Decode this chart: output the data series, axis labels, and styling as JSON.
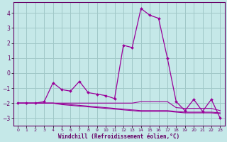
{
  "xlabel": "Windchill (Refroidissement éolien,°C)",
  "xlim": [
    -0.5,
    23.5
  ],
  "ylim": [
    -3.5,
    4.7
  ],
  "yticks": [
    -3,
    -2,
    -1,
    0,
    1,
    2,
    3,
    4
  ],
  "xticks": [
    0,
    1,
    2,
    3,
    4,
    5,
    6,
    7,
    8,
    9,
    10,
    11,
    12,
    13,
    14,
    15,
    16,
    17,
    18,
    19,
    20,
    21,
    22,
    23
  ],
  "background_color": "#c5e8e8",
  "grid_color": "#a0c8c8",
  "line_color": "#990099",
  "line1_x": [
    0,
    1,
    2,
    3,
    4,
    5,
    6,
    7,
    8,
    9,
    10,
    11,
    12,
    13,
    14,
    15,
    16,
    17,
    18,
    19,
    20,
    21,
    22,
    23
  ],
  "line1_y": [
    -2.0,
    -2.0,
    -2.0,
    -1.9,
    -0.65,
    -1.1,
    -1.2,
    -0.55,
    -1.3,
    -1.4,
    -1.5,
    -1.7,
    1.85,
    1.7,
    4.3,
    3.85,
    3.65,
    1.0,
    -1.9,
    -2.5,
    -1.75,
    -2.55,
    -1.75,
    -3.0
  ],
  "line2_x": [
    0,
    1,
    2,
    3,
    4,
    5,
    6,
    7,
    8,
    9,
    10,
    11,
    12,
    13,
    14,
    15,
    16,
    17,
    18,
    19,
    20,
    21,
    22,
    23
  ],
  "line2_y": [
    -2.0,
    -2.0,
    -2.0,
    -2.0,
    -2.0,
    -2.0,
    -2.0,
    -2.0,
    -2.0,
    -2.0,
    -2.0,
    -2.0,
    -2.0,
    -2.0,
    -1.9,
    -1.9,
    -1.9,
    -1.9,
    -2.3,
    -2.35,
    -2.35,
    -2.35,
    -2.35,
    -2.5
  ],
  "line3_x": [
    0,
    1,
    2,
    3,
    4,
    5,
    6,
    7,
    8,
    9,
    10,
    11,
    12,
    13,
    14,
    15,
    16,
    17,
    18,
    19,
    20,
    21,
    22,
    23
  ],
  "line3_y": [
    -2.0,
    -2.0,
    -2.0,
    -2.0,
    -2.0,
    -2.05,
    -2.1,
    -2.15,
    -2.2,
    -2.25,
    -2.3,
    -2.35,
    -2.4,
    -2.45,
    -2.5,
    -2.5,
    -2.5,
    -2.5,
    -2.55,
    -2.6,
    -2.6,
    -2.6,
    -2.6,
    -2.65
  ],
  "line4_x": [
    0,
    1,
    2,
    3,
    4,
    5,
    6,
    7,
    8,
    9,
    10,
    11,
    12,
    13,
    14,
    15,
    16,
    17,
    18,
    19,
    20,
    21,
    22,
    23
  ],
  "line4_y": [
    -2.0,
    -2.0,
    -2.0,
    -2.0,
    -2.0,
    -2.1,
    -2.15,
    -2.2,
    -2.25,
    -2.3,
    -2.35,
    -2.4,
    -2.45,
    -2.5,
    -2.55,
    -2.55,
    -2.55,
    -2.55,
    -2.6,
    -2.65,
    -2.65,
    -2.65,
    -2.65,
    -2.7
  ]
}
